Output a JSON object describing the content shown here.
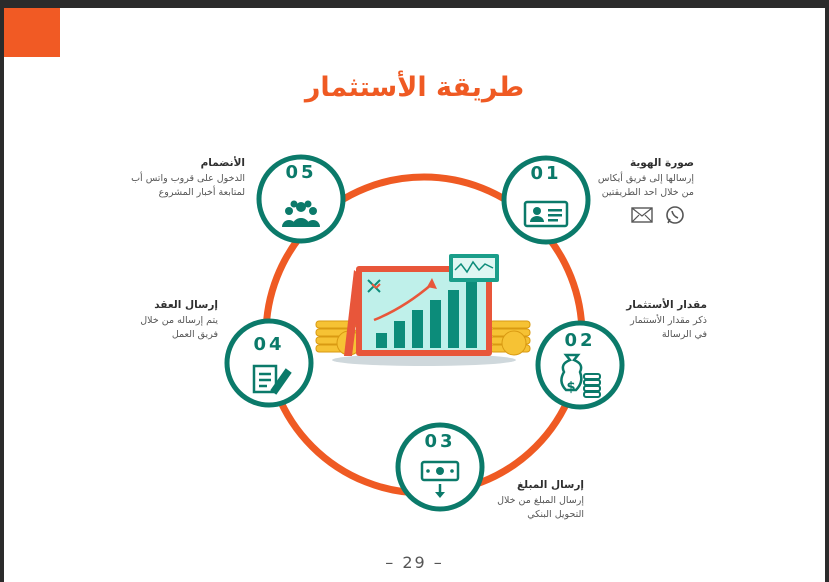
{
  "title": "طريقة الأستثمار",
  "steps": [
    {
      "num": "01",
      "heading": "صورة الهوية",
      "line1": "إرسالها إلى فريق أيكاس",
      "line2": "من خلال احد الطريقتين",
      "icon": "id-card-icon"
    },
    {
      "num": "02",
      "heading": "مقدار الأستثمار",
      "line1": "ذكر مقدار الأستثمار",
      "line2": "في الرسالة",
      "icon": "money-bag-coins-icon"
    },
    {
      "num": "03",
      "heading": "إرسال المبلغ",
      "line1": "إرسال المبلغ من خلال",
      "line2": "التحويل البنكي",
      "icon": "banknote-download-icon"
    },
    {
      "num": "04",
      "heading": "إرسال العقد",
      "line1": "يتم إرساله من خلال",
      "line2": "فريق العمل",
      "icon": "contract-sign-icon"
    },
    {
      "num": "05",
      "heading": "الأنضمام",
      "line1": "الدخول على قروب واتس أب",
      "line2": "لمتابعة أخبار المشروع",
      "icon": "group-people-icon"
    }
  ],
  "contact_icons": [
    "whatsapp-icon",
    "email-icon"
  ],
  "center_image": "growth-chart-coins-illustration",
  "page_number": "– 29 –",
  "colors": {
    "accent": "#f15a24",
    "teal": "#0b7a6a",
    "ring": "#ef5a23"
  }
}
